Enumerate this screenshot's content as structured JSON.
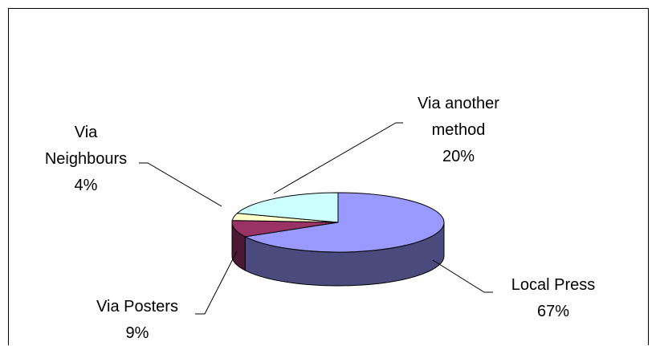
{
  "chart_data": {
    "type": "pie",
    "style": "3d",
    "title": "",
    "slices": [
      {
        "label_lines": [
          "Local  Press"
        ],
        "value_label": "67%",
        "value": 67,
        "color": "#9999ff",
        "side_color": "#4a4a7c"
      },
      {
        "label_lines": [
          "Via Posters"
        ],
        "value_label": "9%",
        "value": 9,
        "color": "#993366",
        "side_color": "#4c1833"
      },
      {
        "label_lines": [
          "Via",
          "Neighbours"
        ],
        "value_label": "4%",
        "value": 4,
        "color": "#ffffcc",
        "side_color": "#7f7f66"
      },
      {
        "label_lines": [
          "Via another",
          "method"
        ],
        "value_label": "20%",
        "value": 20,
        "color": "#ccffff",
        "side_color": "#667f7f"
      }
    ]
  }
}
